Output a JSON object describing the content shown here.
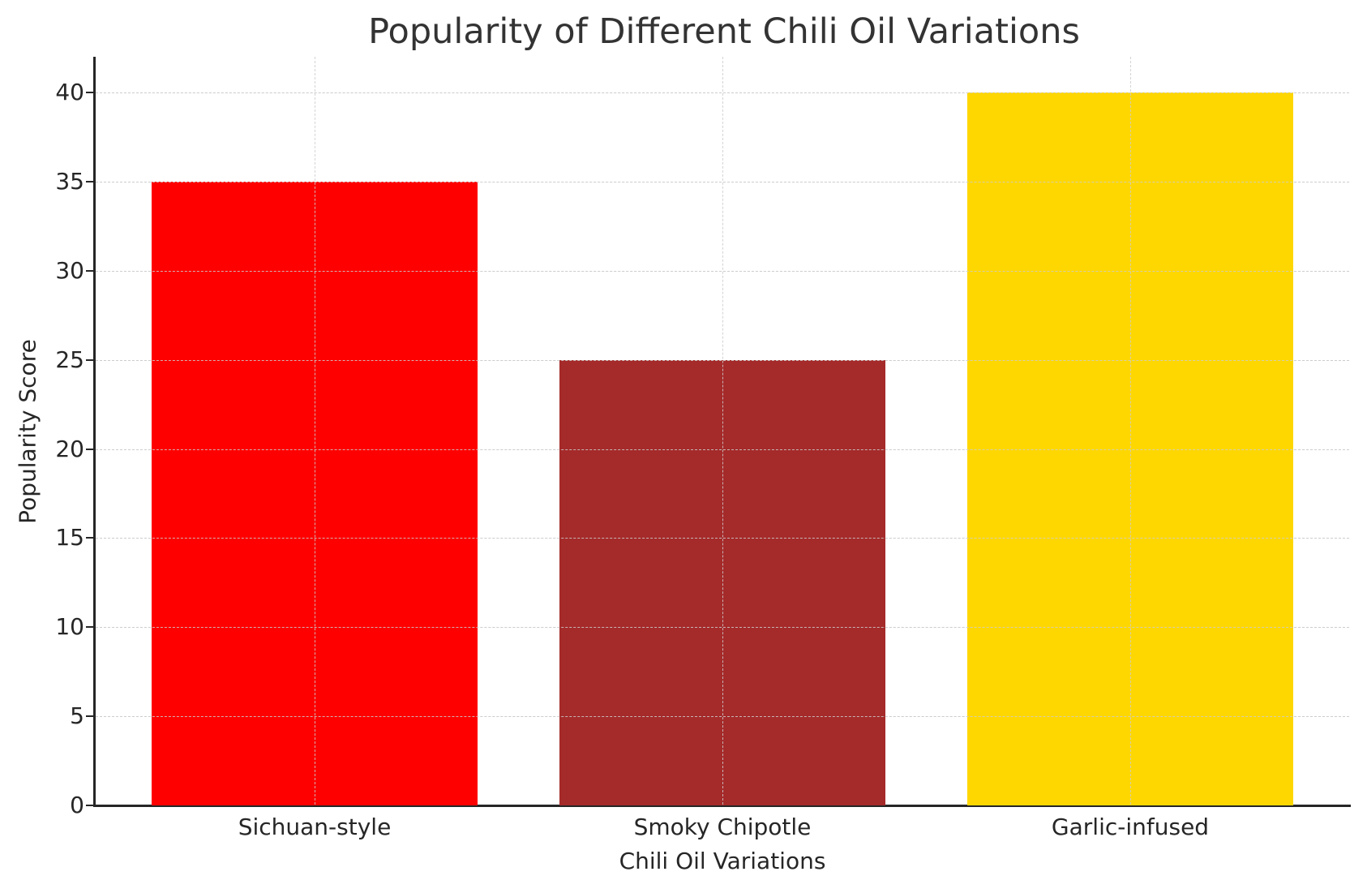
{
  "chart_data": {
    "type": "bar",
    "title": "Popularity of Different Chili Oil Variations",
    "xlabel": "Chili Oil Variations",
    "ylabel": "Popularity Score",
    "categories": [
      "Sichuan-style",
      "Smoky Chipotle",
      "Garlic-infused"
    ],
    "values": [
      35,
      25,
      40
    ],
    "colors": [
      "#ff0000",
      "#a52a2a",
      "#ffd700"
    ],
    "ylim": [
      0,
      42
    ],
    "yticks": [
      0,
      5,
      10,
      15,
      20,
      25,
      30,
      35,
      40
    ],
    "grid": true,
    "legend": null
  },
  "labels": {
    "title": "Popularity of Different Chili Oil Variations",
    "xlabel": "Chili Oil Variations",
    "ylabel": "Popularity Score",
    "categories": [
      "Sichuan-style",
      "Smoky Chipotle",
      "Garlic-infused"
    ],
    "yticks": [
      "0",
      "5",
      "10",
      "15",
      "20",
      "25",
      "30",
      "35",
      "40"
    ]
  }
}
